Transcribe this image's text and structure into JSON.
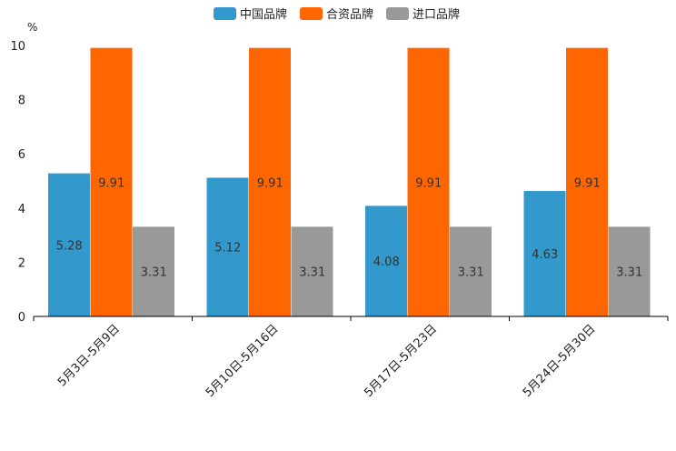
{
  "chart_data": {
    "type": "bar",
    "unit": "%",
    "categories": [
      "5月3日-5月9日",
      "5月10日-5月16日",
      "5月17日-5月23日",
      "5月24日-5月30日"
    ],
    "series": [
      {
        "name": "中国品牌",
        "color": "#3399cc",
        "values": [
          5.28,
          5.12,
          4.08,
          4.63
        ]
      },
      {
        "name": "合资品牌",
        "color": "#ff6600",
        "values": [
          9.91,
          9.91,
          9.91,
          9.91
        ]
      },
      {
        "name": "进口品牌",
        "color": "#999999",
        "values": [
          3.31,
          3.31,
          3.31,
          3.31
        ]
      }
    ],
    "data_labels": [
      [
        "5.28",
        "5.12",
        "4.08",
        "4.63"
      ],
      [
        "9.91",
        "9.91",
        "9.91",
        "9.91"
      ],
      [
        "3.31",
        "3.31",
        "3.31",
        "3.31"
      ]
    ],
    "ylim": [
      0,
      10
    ],
    "yticks": [
      "0",
      "2",
      "4",
      "6",
      "8",
      "10"
    ],
    "legend_position": "top-center",
    "grid": false
  }
}
